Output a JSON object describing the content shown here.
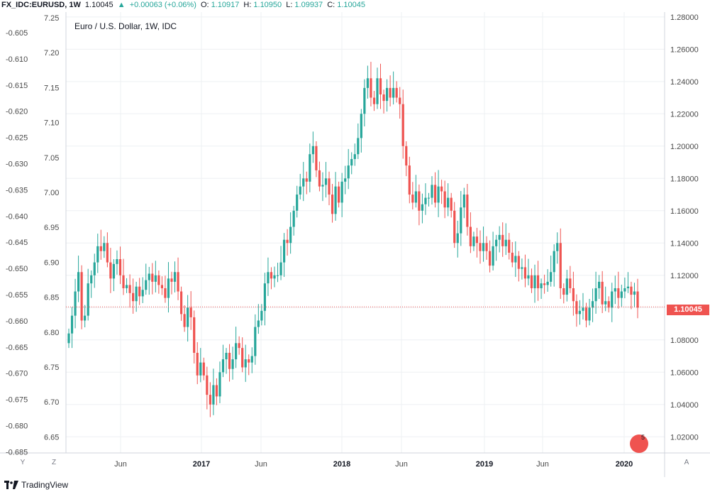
{
  "header": {
    "symbol": "FX_IDC:EURUSD, 1W",
    "last": "1.10045",
    "change": "+0.00063 (+0.06%)",
    "open_label": "O:",
    "open": "1.10917",
    "high_label": "H:",
    "high": "1.10950",
    "low_label": "L:",
    "low": "1.09937",
    "close_label": "C:",
    "close": "1.10045"
  },
  "legend_label": "Euro / U.S. Dollar, 1W, IDC",
  "current_price_tag": "1.10045",
  "buttons": {
    "y": "Y",
    "z": "Z",
    "a": "A"
  },
  "flag_count": "5",
  "brand": "TradingView",
  "colors": {
    "up": "#26a69a",
    "down": "#ef5350",
    "grid": "#eef0f3",
    "price_line": "#ef5350"
  },
  "chart_data": {
    "type": "candlestick",
    "title": "Euro / U.S. Dollar, 1W, IDC",
    "x_tick_labels": [
      "Jun",
      "2017",
      "Jun",
      "2018",
      "Jun",
      "2019",
      "Jun",
      "2020"
    ],
    "right_axis": {
      "ticks": [
        "1.28000",
        "1.26000",
        "1.24000",
        "1.22000",
        "1.20000",
        "1.18000",
        "1.16000",
        "1.14000",
        "1.12000",
        "1.10000",
        "1.08000",
        "1.06000",
        "1.04000",
        "1.02000"
      ],
      "range": [
        1.01,
        1.283
      ]
    },
    "left_axis_1": {
      "ticks": [
        "7.25",
        "7.20",
        "7.15",
        "7.10",
        "7.05",
        "7.00",
        "6.95",
        "6.90",
        "6.85",
        "6.80",
        "6.75",
        "6.70",
        "6.65"
      ]
    },
    "left_axis_2": {
      "ticks": [
        "-0.605",
        "-0.610",
        "-0.615",
        "-0.620",
        "-0.625",
        "-0.630",
        "-0.635",
        "-0.640",
        "-0.645",
        "-0.650",
        "-0.655",
        "-0.660",
        "-0.665",
        "-0.670",
        "-0.675",
        "-0.680",
        "-0.685"
      ]
    },
    "current_price": 1.10045,
    "closes": [
      1.084,
      1.095,
      1.11,
      1.122,
      1.092,
      1.095,
      1.115,
      1.12,
      1.128,
      1.138,
      1.135,
      1.14,
      1.128,
      1.118,
      1.127,
      1.13,
      1.12,
      1.112,
      1.114,
      1.109,
      1.104,
      1.113,
      1.107,
      1.111,
      1.117,
      1.121,
      1.116,
      1.12,
      1.114,
      1.112,
      1.106,
      1.118,
      1.116,
      1.122,
      1.11,
      1.096,
      1.088,
      1.1,
      1.094,
      1.072,
      1.058,
      1.066,
      1.058,
      1.046,
      1.04,
      1.052,
      1.045,
      1.06,
      1.068,
      1.072,
      1.062,
      1.068,
      1.078,
      1.075,
      1.063,
      1.068,
      1.066,
      1.07,
      1.088,
      1.092,
      1.098,
      1.115,
      1.122,
      1.118,
      1.12,
      1.12,
      1.128,
      1.142,
      1.14,
      1.15,
      1.16,
      1.17,
      1.175,
      1.18,
      1.178,
      1.195,
      1.2,
      1.185,
      1.175,
      1.176,
      1.18,
      1.17,
      1.158,
      1.175,
      1.165,
      1.178,
      1.18,
      1.188,
      1.192,
      1.195,
      1.205,
      1.22,
      1.236,
      1.242,
      1.23,
      1.226,
      1.242,
      1.232,
      1.228,
      1.236,
      1.23,
      1.236,
      1.23,
      1.226,
      1.2,
      1.188,
      1.17,
      1.165,
      1.172,
      1.16,
      1.164,
      1.168,
      1.168,
      1.176,
      1.165,
      1.175,
      1.172,
      1.162,
      1.168,
      1.16,
      1.14,
      1.146,
      1.162,
      1.17,
      1.15,
      1.138,
      1.144,
      1.14,
      1.135,
      1.14,
      1.135,
      1.126,
      1.138,
      1.142,
      1.145,
      1.138,
      1.142,
      1.134,
      1.128,
      1.132,
      1.124,
      1.125,
      1.118,
      1.12,
      1.112,
      1.12,
      1.112,
      1.115,
      1.114,
      1.116,
      1.122,
      1.135,
      1.14,
      1.112,
      1.108,
      1.118,
      1.112,
      1.104,
      1.096,
      1.098,
      1.1,
      1.092,
      1.1,
      1.104,
      1.112,
      1.116,
      1.102,
      1.104,
      1.1,
      1.11,
      1.112,
      1.106,
      1.11,
      1.112,
      1.113,
      1.108,
      1.11,
      1.1
    ]
  }
}
